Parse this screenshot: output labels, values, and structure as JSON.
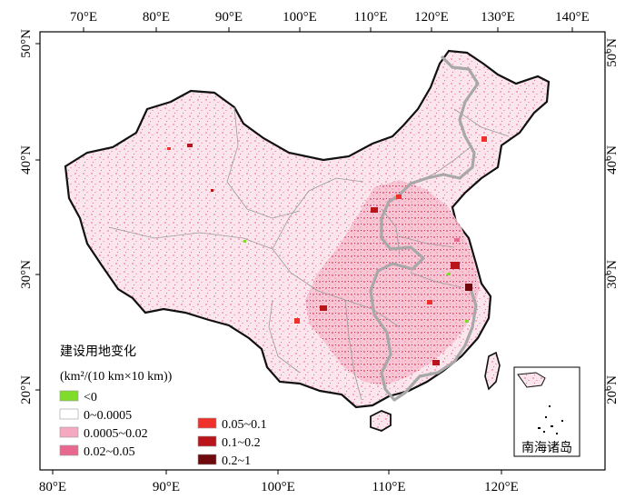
{
  "top_axis_ticks": [
    "70°E",
    "80°E",
    "90°E",
    "100°E",
    "110°E",
    "120°E",
    "130°E",
    "140°E"
  ],
  "bottom_axis_ticks": [
    "80°E",
    "90°E",
    "100°E",
    "110°E",
    "120°E"
  ],
  "left_axis_ticks": [
    "50°N",
    "40°N",
    "30°N",
    "20°N"
  ],
  "right_axis_ticks": [
    "50°N",
    "40°N",
    "30°N",
    "20°N"
  ],
  "legend": {
    "title_line1": "建设用地变化",
    "title_line2": "(km²/(10 km×10 km))",
    "classes": [
      {
        "label": "<0",
        "color": "#7fdc2a"
      },
      {
        "label": "0~0.0005",
        "color": "#ffffff"
      },
      {
        "label": "0.0005~0.02",
        "color": "#f5a9c0"
      },
      {
        "label": "0.02~0.05",
        "color": "#e8698f"
      },
      {
        "label": "0.05~0.1",
        "color": "#f0302a"
      },
      {
        "label": "0.1~0.2",
        "color": "#b8141a"
      },
      {
        "label": "0.2~1",
        "color": "#6e0a0e"
      }
    ]
  },
  "inset_label": "南海诸岛",
  "colors": {
    "national_border": "#111111",
    "provincial_border": "#9a9a9a",
    "hu_line": "#a8a8a8",
    "frame": "#000000"
  }
}
